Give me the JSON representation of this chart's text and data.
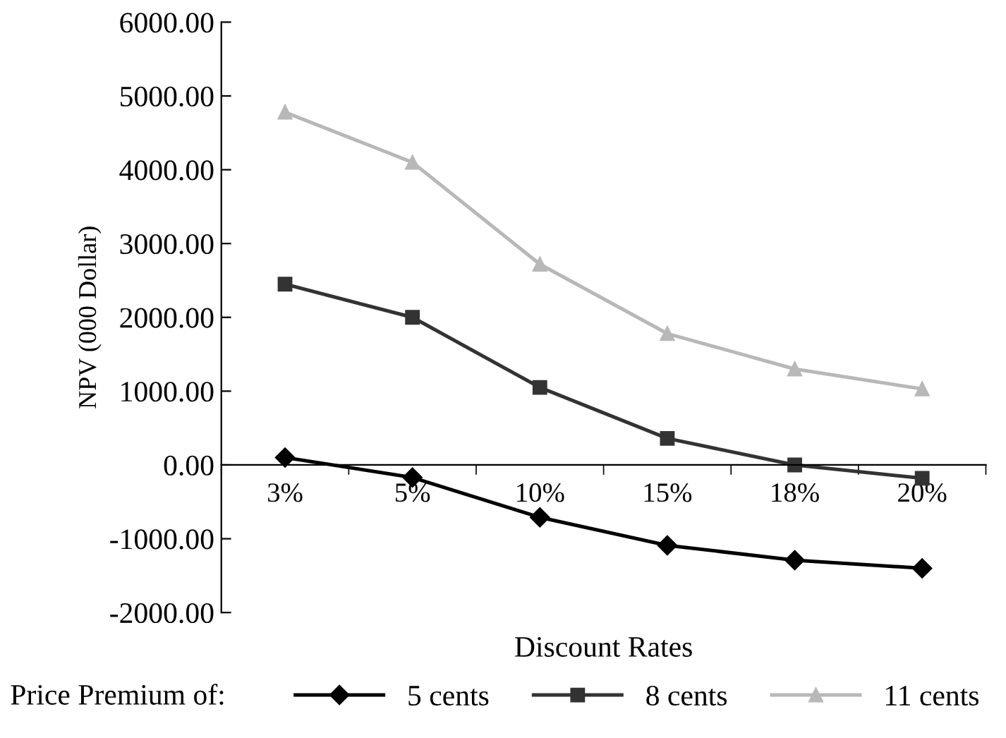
{
  "chart_data": {
    "type": "line",
    "xlabel": "Discount Rates",
    "ylabel": "NPV (000 Dollar)",
    "legend_title": "Price Premium of:",
    "categories": [
      "3%",
      "5%",
      "10%",
      "15%",
      "18%",
      "20%"
    ],
    "series": [
      {
        "name": "5 cents",
        "color": "#000000",
        "marker": "diamond",
        "values": [
          100,
          -170,
          -710,
          -1090,
          -1290,
          -1400
        ]
      },
      {
        "name": "8 cents",
        "color": "#333333",
        "marker": "square",
        "values": [
          2450,
          2000,
          1050,
          360,
          0,
          -180
        ]
      },
      {
        "name": "11 cents",
        "color": "#b8b8b8",
        "marker": "triangle",
        "values": [
          4780,
          4100,
          2720,
          1780,
          1300,
          1030
        ]
      }
    ],
    "ylim": [
      -2000,
      6000
    ],
    "yticks": [
      {
        "value": -2000,
        "label": "-2000.00"
      },
      {
        "value": -1000,
        "label": "-1000.00"
      },
      {
        "value": 0,
        "label": "0.00"
      },
      {
        "value": 1000,
        "label": "1000.00"
      },
      {
        "value": 2000,
        "label": "2000.00"
      },
      {
        "value": 3000,
        "label": "3000.00"
      },
      {
        "value": 4000,
        "label": "4000.00"
      },
      {
        "value": 5000,
        "label": "5000.00"
      },
      {
        "value": 6000,
        "label": "6000.00"
      }
    ],
    "grid": false,
    "legend": "bottom"
  }
}
